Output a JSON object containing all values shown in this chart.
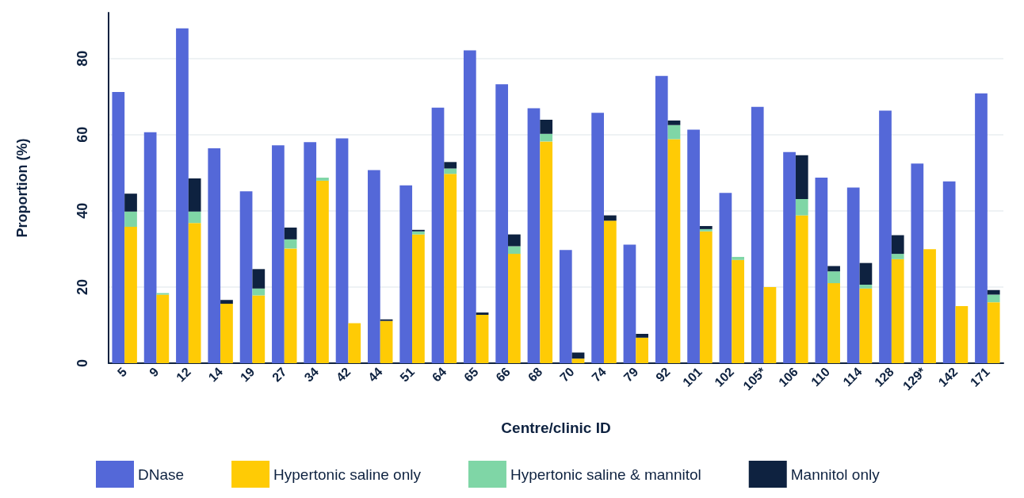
{
  "chart_data": {
    "type": "bar",
    "xlabel": "Centre/clinic ID",
    "ylabel": "Proportion (%)",
    "categories": [
      "5",
      "9",
      "12",
      "14",
      "19",
      "27",
      "34",
      "42",
      "44",
      "51",
      "64",
      "65",
      "66",
      "68",
      "70",
      "74",
      "79",
      "92",
      "101",
      "102",
      "105*",
      "106",
      "110",
      "114",
      "128",
      "129*",
      "142",
      "171"
    ],
    "series": [
      {
        "name": "DNase",
        "color": "#5468d8",
        "values": [
          71.2,
          60.6,
          87.9,
          56.4,
          45.1,
          57.2,
          58.0,
          59.0,
          50.7,
          46.7,
          67.1,
          82.1,
          73.2,
          66.9,
          29.7,
          65.7,
          31.1,
          75.4,
          61.3,
          44.7,
          67.3,
          55.4,
          48.7,
          46.1,
          66.3,
          52.4,
          47.7,
          70.8
        ]
      },
      {
        "name": "Hypertonic saline only",
        "color": "#ffcb05",
        "values": [
          35.8,
          18.0,
          36.8,
          15.6,
          17.8,
          30.1,
          47.9,
          10.5,
          11.1,
          33.8,
          49.7,
          12.7,
          28.7,
          58.2,
          1.2,
          37.4,
          6.7,
          58.8,
          34.6,
          27.1,
          20.0,
          38.8,
          21.0,
          19.6,
          27.3,
          29.9,
          15.0,
          16.0
        ],
        "base": [
          0,
          0,
          0,
          0,
          0,
          0,
          0,
          0,
          0,
          0,
          0,
          0,
          0,
          0,
          0,
          0,
          0,
          0,
          0,
          0,
          0,
          0,
          0,
          0,
          0,
          0,
          0,
          0
        ]
      },
      {
        "name": "Hypertonic saline & mannitol",
        "color": "#7fd6a6",
        "values": [
          4.0,
          0.4,
          3.0,
          null,
          1.8,
          2.4,
          0.8,
          null,
          null,
          0.8,
          1.4,
          null,
          2.0,
          2.0,
          null,
          null,
          null,
          3.7,
          0.6,
          0.8,
          null,
          4.3,
          3.1,
          1.0,
          1.4,
          null,
          null,
          2.0
        ],
        "base": [
          35.8,
          18.0,
          36.8,
          null,
          17.8,
          30.1,
          47.9,
          null,
          null,
          33.8,
          49.7,
          null,
          28.7,
          58.2,
          null,
          null,
          null,
          58.8,
          34.6,
          27.1,
          null,
          38.8,
          21.0,
          19.6,
          27.3,
          null,
          null,
          16.0
        ]
      },
      {
        "name": "Mannitol only",
        "color": "#0e2240",
        "values": [
          4.7,
          null,
          8.7,
          1.0,
          5.1,
          3.1,
          null,
          null,
          0.4,
          0.4,
          1.7,
          0.6,
          3.1,
          3.7,
          1.6,
          1.4,
          1.0,
          1.2,
          0.8,
          null,
          null,
          11.5,
          1.4,
          5.7,
          4.9,
          null,
          null,
          1.2
        ],
        "base": [
          39.8,
          null,
          39.8,
          15.6,
          19.6,
          32.5,
          null,
          null,
          11.1,
          34.6,
          51.1,
          12.7,
          30.7,
          60.2,
          1.2,
          37.4,
          6.7,
          62.5,
          35.2,
          null,
          null,
          43.1,
          24.1,
          20.6,
          28.7,
          null,
          null,
          18.0
        ]
      }
    ],
    "ylim": [
      0,
      92
    ],
    "yticks": [
      0,
      20,
      40,
      60,
      80
    ],
    "grid": "y",
    "legend": "bottom"
  }
}
